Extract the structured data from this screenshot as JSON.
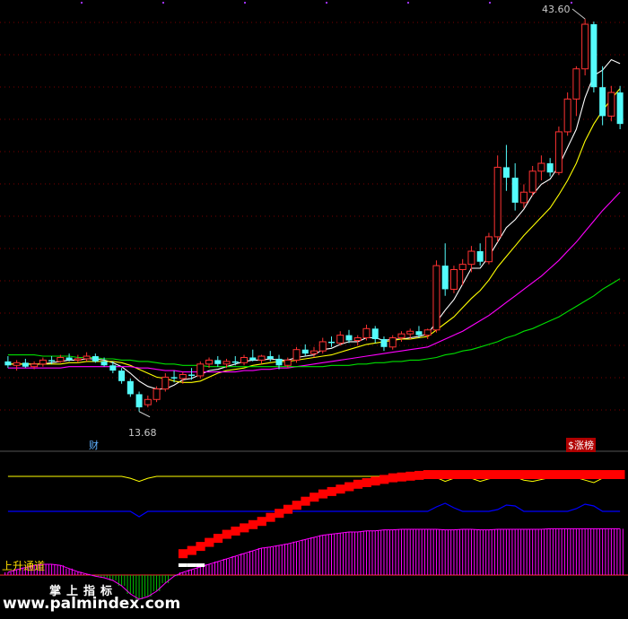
{
  "labels": {
    "high_price": "43.60",
    "low_price": "13.68",
    "finance_badge": "财",
    "limit_up_badge": "$涨榜",
    "channel_label": "上升通道",
    "watermark_cn": "掌上指标",
    "watermark_url": "www.palmindex.com"
  },
  "colors": {
    "up": "#ff3232",
    "down": "#54fcfc",
    "ma_short": "#ffffff",
    "ma_mid": "#ffff00",
    "ma_long": "#ff00ff",
    "ma_longest": "#00e000",
    "indicator_yellow": "#ffff00",
    "indicator_blue": "#0000ff",
    "indicator_red_band": "#ff0000",
    "histogram": "#ff00ff",
    "histogram_neg": "#00c000"
  },
  "chart_data": {
    "type": "candlestick",
    "title": "",
    "xlabel": "",
    "ylabel": "",
    "ylim": [
      12.5,
      44.5
    ],
    "annotations": {
      "max": 43.6,
      "min": 13.68
    },
    "candles": [
      [
        17.5,
        17.9,
        17.0,
        17.2
      ],
      [
        17.2,
        17.6,
        16.8,
        17.4
      ],
      [
        17.4,
        17.7,
        17.0,
        17.1
      ],
      [
        17.1,
        17.5,
        16.9,
        17.3
      ],
      [
        17.3,
        17.8,
        17.1,
        17.6
      ],
      [
        17.6,
        17.9,
        17.3,
        17.5
      ],
      [
        17.5,
        18.0,
        17.4,
        17.8
      ],
      [
        17.8,
        18.1,
        17.5,
        17.6
      ],
      [
        17.6,
        18.0,
        17.4,
        17.7
      ],
      [
        17.7,
        18.2,
        17.5,
        17.9
      ],
      [
        17.9,
        18.1,
        17.4,
        17.5
      ],
      [
        17.5,
        17.8,
        17.1,
        17.2
      ],
      [
        17.2,
        17.5,
        16.6,
        16.8
      ],
      [
        16.8,
        17.0,
        15.8,
        16.0
      ],
      [
        16.0,
        16.2,
        14.8,
        15.0
      ],
      [
        15.0,
        15.2,
        13.68,
        14.0
      ],
      [
        14.2,
        14.9,
        14.0,
        14.6
      ],
      [
        14.6,
        15.6,
        14.4,
        15.4
      ],
      [
        15.4,
        16.6,
        15.2,
        16.3
      ],
      [
        16.3,
        16.8,
        15.9,
        16.2
      ],
      [
        16.2,
        16.7,
        15.8,
        16.5
      ],
      [
        16.5,
        17.0,
        16.1,
        16.4
      ],
      [
        16.4,
        17.5,
        16.2,
        17.3
      ],
      [
        17.3,
        17.8,
        17.0,
        17.6
      ],
      [
        17.6,
        17.9,
        17.1,
        17.3
      ],
      [
        17.3,
        17.7,
        17.0,
        17.5
      ],
      [
        17.5,
        17.9,
        17.2,
        17.4
      ],
      [
        17.4,
        18.0,
        17.2,
        17.8
      ],
      [
        17.8,
        18.4,
        17.5,
        17.6
      ],
      [
        17.6,
        18.0,
        17.3,
        17.9
      ],
      [
        17.9,
        18.3,
        17.5,
        17.7
      ],
      [
        17.7,
        18.0,
        16.9,
        17.2
      ],
      [
        17.2,
        17.8,
        17.0,
        17.6
      ],
      [
        17.6,
        18.6,
        17.4,
        18.4
      ],
      [
        18.4,
        18.8,
        17.9,
        18.1
      ],
      [
        18.1,
        18.6,
        17.8,
        18.3
      ],
      [
        18.3,
        19.3,
        18.1,
        19.0
      ],
      [
        19.0,
        19.4,
        18.6,
        18.9
      ],
      [
        18.9,
        19.8,
        18.7,
        19.5
      ],
      [
        19.5,
        19.9,
        18.9,
        19.1
      ],
      [
        19.1,
        19.5,
        18.7,
        19.3
      ],
      [
        19.3,
        20.3,
        19.1,
        20.0
      ],
      [
        20.0,
        20.2,
        18.9,
        19.2
      ],
      [
        19.2,
        19.4,
        18.3,
        18.6
      ],
      [
        18.6,
        19.5,
        18.4,
        19.3
      ],
      [
        19.3,
        19.8,
        19.0,
        19.6
      ],
      [
        19.6,
        20.0,
        19.2,
        19.8
      ],
      [
        19.8,
        20.2,
        19.3,
        19.5
      ],
      [
        19.5,
        20.0,
        19.2,
        19.9
      ],
      [
        19.9,
        25.2,
        19.7,
        24.8
      ],
      [
        24.8,
        26.5,
        22.5,
        23.0
      ],
      [
        23.0,
        24.8,
        22.7,
        24.5
      ],
      [
        24.5,
        25.3,
        23.3,
        24.9
      ],
      [
        24.9,
        26.3,
        24.3,
        25.9
      ],
      [
        25.9,
        26.5,
        24.8,
        25.1
      ],
      [
        25.1,
        27.3,
        24.9,
        27.0
      ],
      [
        27.0,
        33.2,
        26.6,
        32.3
      ],
      [
        32.3,
        34.0,
        30.5,
        31.5
      ],
      [
        31.5,
        32.6,
        29.0,
        29.6
      ],
      [
        29.6,
        31.0,
        29.2,
        30.4
      ],
      [
        30.4,
        32.4,
        30.1,
        32.0
      ],
      [
        32.0,
        33.2,
        31.3,
        32.6
      ],
      [
        32.6,
        33.0,
        31.6,
        31.9
      ],
      [
        31.9,
        35.4,
        31.7,
        35.0
      ],
      [
        35.0,
        38.0,
        34.7,
        37.5
      ],
      [
        37.5,
        40.0,
        36.2,
        39.8
      ],
      [
        39.8,
        43.6,
        39.3,
        43.2
      ],
      [
        43.2,
        43.4,
        38.0,
        38.4
      ],
      [
        38.4,
        40.0,
        35.5,
        36.2
      ],
      [
        36.2,
        38.5,
        35.8,
        38.0
      ],
      [
        38.0,
        38.5,
        35.2,
        35.6
      ]
    ],
    "ma": [
      {
        "values": [
          17.3,
          17.3,
          17.3,
          17.3,
          17.3,
          17.4,
          17.5,
          17.6,
          17.6,
          17.7,
          17.7,
          17.6,
          17.4,
          17.1,
          16.6,
          16.0,
          15.6,
          15.4,
          15.4,
          15.7,
          16.1,
          16.2,
          16.5,
          16.8,
          16.9,
          17.1,
          17.3,
          17.5,
          17.6,
          17.6,
          17.7,
          17.6,
          17.6,
          17.8,
          17.9,
          18.0,
          18.4,
          18.5,
          18.8,
          19.0,
          19.0,
          19.3,
          19.3,
          19.1,
          19.2,
          19.2,
          19.3,
          19.4,
          19.6,
          20.5,
          21.4,
          22.2,
          23.4,
          24.6,
          24.6,
          25.5,
          26.6,
          27.7,
          28.3,
          29.1,
          30.2,
          31.0,
          31.4,
          32.4,
          33.8,
          35.2,
          37.6,
          39.3,
          39.7,
          40.5,
          40.2
        ]
      },
      {
        "values": [
          17.3,
          17.3,
          17.3,
          17.3,
          17.3,
          17.3,
          17.3,
          17.4,
          17.4,
          17.5,
          17.5,
          17.5,
          17.5,
          17.4,
          17.2,
          16.9,
          16.6,
          16.3,
          16.2,
          16.0,
          15.9,
          15.9,
          16.0,
          16.3,
          16.6,
          16.8,
          16.9,
          17.0,
          17.2,
          17.3,
          17.4,
          17.5,
          17.5,
          17.6,
          17.7,
          17.8,
          17.9,
          18.0,
          18.2,
          18.4,
          18.6,
          18.8,
          18.9,
          19.0,
          19.1,
          19.2,
          19.2,
          19.3,
          19.4,
          19.9,
          20.4,
          20.9,
          21.6,
          22.3,
          22.9,
          23.7,
          24.7,
          25.5,
          26.3,
          27.1,
          27.8,
          28.5,
          29.2,
          30.2,
          31.3,
          32.6,
          34.3,
          35.6,
          36.6,
          37.5,
          38.3
        ]
      },
      {
        "values": [
          17.0,
          17.0,
          17.0,
          17.0,
          17.0,
          17.0,
          17.0,
          17.1,
          17.1,
          17.1,
          17.1,
          17.1,
          17.1,
          17.1,
          17.1,
          17.0,
          17.0,
          16.9,
          16.8,
          16.8,
          16.7,
          16.7,
          16.7,
          16.7,
          16.7,
          16.7,
          16.7,
          16.8,
          16.8,
          16.9,
          16.9,
          17.0,
          17.0,
          17.1,
          17.2,
          17.3,
          17.4,
          17.5,
          17.6,
          17.7,
          17.8,
          17.9,
          18.0,
          18.1,
          18.2,
          18.3,
          18.4,
          18.5,
          18.6,
          18.9,
          19.2,
          19.5,
          19.8,
          20.2,
          20.6,
          21.0,
          21.5,
          22.0,
          22.5,
          23.0,
          23.5,
          24.0,
          24.6,
          25.2,
          25.9,
          26.6,
          27.4,
          28.2,
          29.0,
          29.7,
          30.4
        ]
      },
      {
        "values": [
          18.0,
          18.0,
          18.0,
          18.0,
          17.9,
          17.9,
          17.9,
          17.9,
          17.8,
          17.8,
          17.8,
          17.7,
          17.7,
          17.6,
          17.6,
          17.5,
          17.5,
          17.4,
          17.3,
          17.3,
          17.2,
          17.2,
          17.2,
          17.1,
          17.1,
          17.1,
          17.1,
          17.1,
          17.1,
          17.1,
          17.1,
          17.1,
          17.1,
          17.1,
          17.1,
          17.1,
          17.1,
          17.2,
          17.2,
          17.2,
          17.3,
          17.3,
          17.4,
          17.4,
          17.5,
          17.5,
          17.6,
          17.6,
          17.7,
          17.8,
          18.0,
          18.1,
          18.3,
          18.4,
          18.6,
          18.8,
          19.0,
          19.3,
          19.5,
          19.8,
          20.0,
          20.3,
          20.6,
          20.9,
          21.3,
          21.7,
          22.1,
          22.5,
          23.0,
          23.4,
          23.8
        ]
      }
    ],
    "indicator": {
      "red_band": [
        0,
        0,
        0,
        0,
        0,
        0,
        0,
        0,
        0,
        0,
        0,
        0,
        0,
        0,
        0,
        0,
        0,
        0,
        0,
        0,
        0.02,
        0.06,
        0.11,
        0.16,
        0.21,
        0.26,
        0.3,
        0.34,
        0.38,
        0.42,
        0.47,
        0.52,
        0.57,
        0.62,
        0.67,
        0.72,
        0.76,
        0.79,
        0.82,
        0.85,
        0.88,
        0.9,
        0.92,
        0.94,
        0.96,
        0.97,
        0.98,
        0.99,
        1.0,
        1.0,
        1.0,
        1.0,
        1.0,
        1.0,
        1.0,
        1.0,
        1.0,
        1.0,
        1.0,
        1.0,
        1.0,
        1.0,
        1.0,
        1.0,
        1.0,
        1.0,
        1.0,
        1.0,
        1.0,
        1.0,
        1.0
      ],
      "yellow": [
        1,
        1,
        1,
        1,
        1,
        1,
        1,
        1,
        1,
        1,
        1,
        1,
        1,
        1,
        0.85,
        0.6,
        0.85,
        1,
        1,
        1,
        1,
        1,
        1,
        1,
        1,
        1,
        1,
        1,
        1,
        1,
        1,
        1,
        1,
        1,
        1,
        1,
        1,
        1,
        1,
        1,
        1,
        1,
        1,
        1,
        1,
        1,
        1,
        1,
        1,
        0.9,
        0.6,
        0.85,
        0.95,
        0.85,
        0.6,
        0.8,
        0.9,
        0.95,
        0.95,
        0.7,
        0.6,
        0.75,
        0.9,
        0.95,
        0.95,
        0.9,
        0.7,
        0.5,
        0.85,
        0.95,
        0.9
      ],
      "blue": [
        0,
        0,
        0,
        0,
        0,
        0,
        0,
        0,
        0,
        0,
        0,
        0,
        0,
        0,
        0,
        -0.3,
        0,
        0,
        0,
        0,
        0,
        0,
        0,
        0,
        0,
        0,
        0,
        0,
        0,
        0,
        0,
        0,
        0,
        0,
        0,
        0,
        0,
        0,
        0,
        0,
        0,
        0,
        0,
        0,
        0,
        0,
        0,
        0,
        0,
        0.25,
        0.45,
        0.2,
        0.0,
        0,
        0,
        0,
        0.1,
        0.35,
        0.3,
        0,
        0,
        0,
        0,
        0,
        0,
        0.15,
        0.4,
        0.3,
        0,
        0,
        0
      ],
      "histogram": [
        0.05,
        0.1,
        0.14,
        0.18,
        0.2,
        0.2,
        0.18,
        0.12,
        0.06,
        0.02,
        -0.02,
        -0.05,
        -0.1,
        -0.2,
        -0.35,
        -0.45,
        -0.4,
        -0.3,
        -0.15,
        -0.02,
        0.05,
        0.1,
        0.15,
        0.2,
        0.25,
        0.3,
        0.35,
        0.4,
        0.45,
        0.5,
        0.52,
        0.55,
        0.58,
        0.62,
        0.66,
        0.7,
        0.74,
        0.76,
        0.78,
        0.8,
        0.8,
        0.82,
        0.82,
        0.84,
        0.84,
        0.85,
        0.85,
        0.85,
        0.85,
        0.85,
        0.84,
        0.84,
        0.85,
        0.85,
        0.84,
        0.84,
        0.85,
        0.85,
        0.85,
        0.85,
        0.85,
        0.85,
        0.86,
        0.86,
        0.86,
        0.86,
        0.86,
        0.86,
        0.86,
        0.86,
        0.86
      ]
    }
  }
}
